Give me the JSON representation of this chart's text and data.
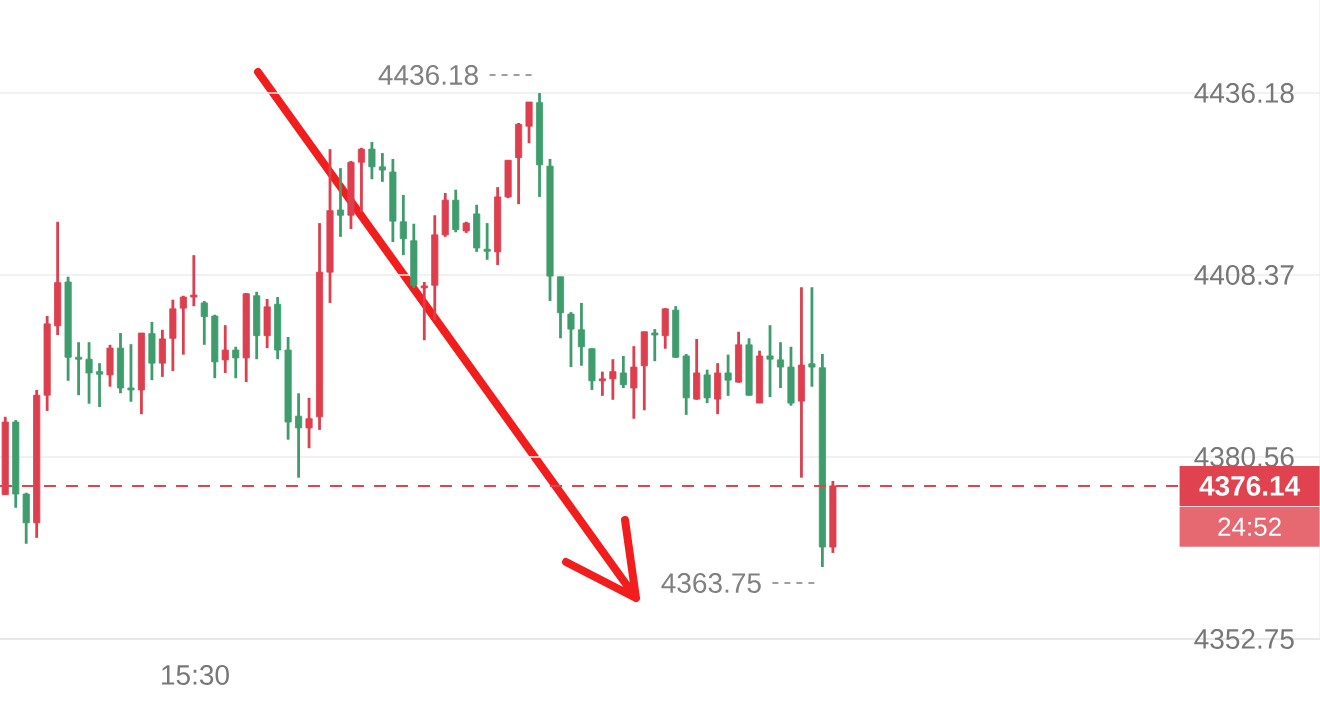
{
  "chart_data": {
    "type": "candlestick",
    "categories": [
      null,
      null,
      null,
      null,
      null,
      null,
      null,
      null,
      null,
      null,
      null,
      null,
      null,
      null,
      null,
      null,
      null,
      null,
      null,
      null,
      null,
      null,
      null,
      null,
      null,
      null,
      null,
      null,
      null,
      null,
      null,
      null,
      null,
      null,
      null,
      null,
      null,
      null,
      null,
      null,
      null,
      null,
      null,
      null,
      null,
      null,
      null,
      null,
      null,
      null,
      null,
      null,
      null,
      null,
      null,
      null,
      null,
      null,
      null,
      null,
      null,
      null,
      null,
      null,
      null,
      null,
      null,
      null,
      null,
      null,
      null,
      null,
      null,
      null,
      null,
      null,
      null,
      null,
      null,
      null,
      null,
      null,
      null,
      null,
      null,
      null,
      null,
      null,
      null,
      null,
      null,
      null,
      null,
      null,
      null,
      null,
      null,
      null,
      null,
      null,
      null,
      null,
      null,
      null,
      null,
      null,
      null,
      null,
      null,
      null,
      null,
      null,
      null,
      null,
      null,
      null,
      null,
      null,
      null,
      null,
      null,
      null,
      null,
      null,
      null,
      null
    ],
    "ohlc": [
      [
        4374.8,
        4386.7,
        4374.8,
        4385.9
      ],
      [
        4385.9,
        4386.2,
        4372.8,
        4374.9
      ],
      [
        4374.9,
        4375.1,
        4367.3,
        4370.5
      ],
      [
        4370.5,
        4390.8,
        4368.2,
        4390.0
      ],
      [
        4390.0,
        4402.1,
        4387.6,
        4400.9
      ],
      [
        4400.6,
        4416.5,
        4399.2,
        4407.2
      ],
      [
        4407.3,
        4408.1,
        4392.2,
        4395.8
      ],
      [
        4395.8,
        4398.1,
        4390.0,
        4395.5
      ],
      [
        4395.5,
        4398.1,
        4388.7,
        4393.4
      ],
      [
        4393.6,
        4394.9,
        4388.2,
        4393.2
      ],
      [
        4393.1,
        4397.7,
        4391.3,
        4397.2
      ],
      [
        4397.2,
        4399.5,
        4390.3,
        4391.1
      ],
      [
        4391.1,
        4397.8,
        4389.0,
        4390.8
      ],
      [
        4390.8,
        4399.5,
        4387.1,
        4399.5
      ],
      [
        4399.4,
        4401.2,
        4392.3,
        4394.9
      ],
      [
        4394.9,
        4400.0,
        4392.8,
        4398.6
      ],
      [
        4398.7,
        4404.6,
        4393.7,
        4403.2
      ],
      [
        4403.3,
        4405.2,
        4396.2,
        4405.0
      ],
      [
        4405.0,
        4411.4,
        4403.6,
        4405.3
      ],
      [
        4404.1,
        4404.4,
        4397.7,
        4402.0
      ],
      [
        4402.1,
        4402.3,
        4392.6,
        4395.1
      ],
      [
        4395.4,
        4400.7,
        4393.4,
        4396.9
      ],
      [
        4396.9,
        4397.4,
        4392.6,
        4395.7
      ],
      [
        4395.7,
        4405.6,
        4392.0,
        4405.5
      ],
      [
        4405.2,
        4405.8,
        4395.5,
        4399.1
      ],
      [
        4399.1,
        4404.7,
        4397.2,
        4403.5
      ],
      [
        4403.9,
        4405.0,
        4395.5,
        4396.9
      ],
      [
        4396.9,
        4398.9,
        4383.2,
        4385.9
      ],
      [
        4386.8,
        4390.3,
        4377.4,
        4385.0
      ],
      [
        4385.0,
        4389.6,
        4381.9,
        4386.4
      ],
      [
        4386.7,
        4416.3,
        4384.7,
        4408.8
      ],
      [
        4408.8,
        4427.6,
        4404.1,
        4418.2
      ],
      [
        4418.3,
        4424.7,
        4414.2,
        4417.5
      ],
      [
        4417.5,
        4425.8,
        4415.4,
        4425.6
      ],
      [
        4425.6,
        4427.8,
        4418.0,
        4427.6
      ],
      [
        4427.6,
        4428.7,
        4423.0,
        4424.9
      ],
      [
        4424.9,
        4427.0,
        4422.6,
        4424.4
      ],
      [
        4424.1,
        4426.1,
        4413.4,
        4416.6
      ],
      [
        4416.5,
        4420.6,
        4411.4,
        4413.9
      ],
      [
        4413.6,
        4416.2,
        4406.4,
        4406.8
      ],
      [
        4406.4,
        4407.3,
        4398.4,
        4406.7
      ],
      [
        4406.8,
        4417.5,
        4401.5,
        4414.5
      ],
      [
        4414.5,
        4420.9,
        4414.2,
        4419.8
      ],
      [
        4419.8,
        4421.4,
        4414.9,
        4415.3
      ],
      [
        4415.1,
        4416.5,
        4414.8,
        4416.3
      ],
      [
        4417.7,
        4419.1,
        4411.9,
        4412.5
      ],
      [
        4412.3,
        4416.3,
        4410.7,
        4412.0
      ],
      [
        4411.9,
        4421.8,
        4409.9,
        4420.3
      ],
      [
        4420.3,
        4425.9,
        4420.1,
        4425.9
      ],
      [
        4426.3,
        4431.6,
        4419.2,
        4431.4
      ],
      [
        4431.1,
        4434.8,
        4428.5,
        4434.8
      ],
      [
        4434.7,
        4436.18,
        4420.3,
        4425.2
      ],
      [
        4425.0,
        4426.1,
        4404.4,
        4408.2
      ],
      [
        4408.1,
        4408.1,
        4398.7,
        4402.6
      ],
      [
        4402.4,
        4402.7,
        4394.3,
        4400.1
      ],
      [
        4400.0,
        4404.1,
        4394.5,
        4397.4
      ],
      [
        4397.1,
        4397.2,
        4390.8,
        4392.2
      ],
      [
        4392.2,
        4393.6,
        4389.9,
        4392.5
      ],
      [
        4392.5,
        4395.5,
        4389.3,
        4393.6
      ],
      [
        4393.4,
        4396.0,
        4391.1,
        4391.6
      ],
      [
        4391.1,
        4397.5,
        4386.4,
        4394.3
      ],
      [
        4394.5,
        4399.7,
        4387.7,
        4399.7
      ],
      [
        4399.5,
        4400.1,
        4395.2,
        4399.2
      ],
      [
        4399.1,
        4403.3,
        4397.1,
        4403.2
      ],
      [
        4403.0,
        4403.6,
        4395.7,
        4395.8
      ],
      [
        4396.0,
        4396.3,
        4387.0,
        4389.6
      ],
      [
        4389.4,
        4398.6,
        4389.3,
        4393.4
      ],
      [
        4393.1,
        4393.9,
        4388.8,
        4389.6
      ],
      [
        4389.4,
        4394.9,
        4387.1,
        4393.4
      ],
      [
        4393.4,
        4396.2,
        4389.9,
        4392.3
      ],
      [
        4392.0,
        4399.7,
        4391.9,
        4397.7
      ],
      [
        4397.7,
        4398.7,
        4389.9,
        4390.0
      ],
      [
        4388.8,
        4396.8,
        4388.8,
        4396.0
      ],
      [
        4396.0,
        4400.7,
        4389.7,
        4395.5
      ],
      [
        4395.4,
        4398.1,
        4391.1,
        4394.3
      ],
      [
        4394.3,
        4397.4,
        4388.4,
        4388.8
      ],
      [
        4389.1,
        4406.5,
        4377.4,
        4394.6
      ],
      [
        4394.8,
        4406.5,
        4391.3,
        4394.3
      ],
      [
        4394.2,
        4396.3,
        4363.75,
        4366.8
      ],
      [
        4366.8,
        4376.9,
        4365.9,
        4376.14
      ],
      null,
      null,
      null,
      null,
      null,
      null,
      null,
      null,
      null,
      null,
      null,
      null,
      null,
      null,
      null,
      null,
      null,
      null,
      null,
      null,
      null,
      null,
      null,
      null,
      null,
      null,
      null,
      null,
      null,
      null,
      null,
      null,
      null,
      null,
      null,
      null,
      null,
      null,
      null,
      null,
      null,
      null,
      null,
      null,
      null,
      null
    ],
    "colors": [
      "#dd3f4e",
      "#3f9d6d",
      "#3f9d6d",
      "#dd3f4e",
      "#dd3f4e",
      "#dd3f4e",
      "#3f9d6d",
      "#3f9d6d",
      "#3f9d6d",
      "#3f9d6d",
      "#dd3f4e",
      "#3f9d6d",
      "#3f9d6d",
      "#dd3f4e",
      "#3f9d6d",
      "#dd3f4e",
      "#dd3f4e",
      "#dd3f4e",
      "#dd3f4e",
      "#3f9d6d",
      "#3f9d6d",
      "#dd3f4e",
      "#3f9d6d",
      "#dd3f4e",
      "#3f9d6d",
      "#dd3f4e",
      "#3f9d6d",
      "#3f9d6d",
      "#3f9d6d",
      "#dd3f4e",
      "#dd3f4e",
      "#dd3f4e",
      "#3f9d6d",
      "#dd3f4e",
      "#dd3f4e",
      "#3f9d6d",
      "#3f9d6d",
      "#3f9d6d",
      "#3f9d6d",
      "#3f9d6d",
      "#dd3f4e",
      "#dd3f4e",
      "#dd3f4e",
      "#3f9d6d",
      "#dd3f4e",
      "#3f9d6d",
      "#3f9d6d",
      "#dd3f4e",
      "#dd3f4e",
      "#dd3f4e",
      "#dd3f4e",
      "#3f9d6d",
      "#3f9d6d",
      "#3f9d6d",
      "#3f9d6d",
      "#3f9d6d",
      "#3f9d6d",
      "#dd3f4e",
      "#dd3f4e",
      "#3f9d6d",
      "#dd3f4e",
      "#dd3f4e",
      "#3f9d6d",
      "#dd3f4e",
      "#3f9d6d",
      "#3f9d6d",
      "#dd3f4e",
      "#3f9d6d",
      "#dd3f4e",
      "#3f9d6d",
      "#dd3f4e",
      "#3f9d6d",
      "#dd3f4e",
      "#3f9d6d",
      "#3f9d6d",
      "#3f9d6d",
      "#dd3f4e",
      "#3f9d6d",
      "#3f9d6d",
      "#dd3f4e",
      null,
      null,
      null,
      null,
      null,
      null,
      null,
      null,
      null,
      null,
      null,
      null,
      null,
      null,
      null,
      null,
      null,
      null,
      null,
      null,
      null,
      null,
      null,
      null,
      null,
      null,
      null,
      null,
      null,
      null,
      null,
      null,
      null,
      null,
      null,
      null,
      null,
      null,
      null,
      null,
      null,
      null,
      null,
      null,
      null,
      null
    ],
    "ylim": [
      4352.75,
      4450.39
    ],
    "yticks": [
      4352.75,
      4380.56,
      4408.37,
      4436.18
    ],
    "grid": "y",
    "ref_lines": [
      {
        "axis": "y",
        "value": 4376.14,
        "label": "4376.14",
        "color": "#e0434f",
        "line_style": "dashed"
      }
    ],
    "annotations": [
      "4436.18",
      "4363.75",
      {
        "text": "24:52",
        "y": 4376.14
      },
      "15:30"
    ]
  }
}
